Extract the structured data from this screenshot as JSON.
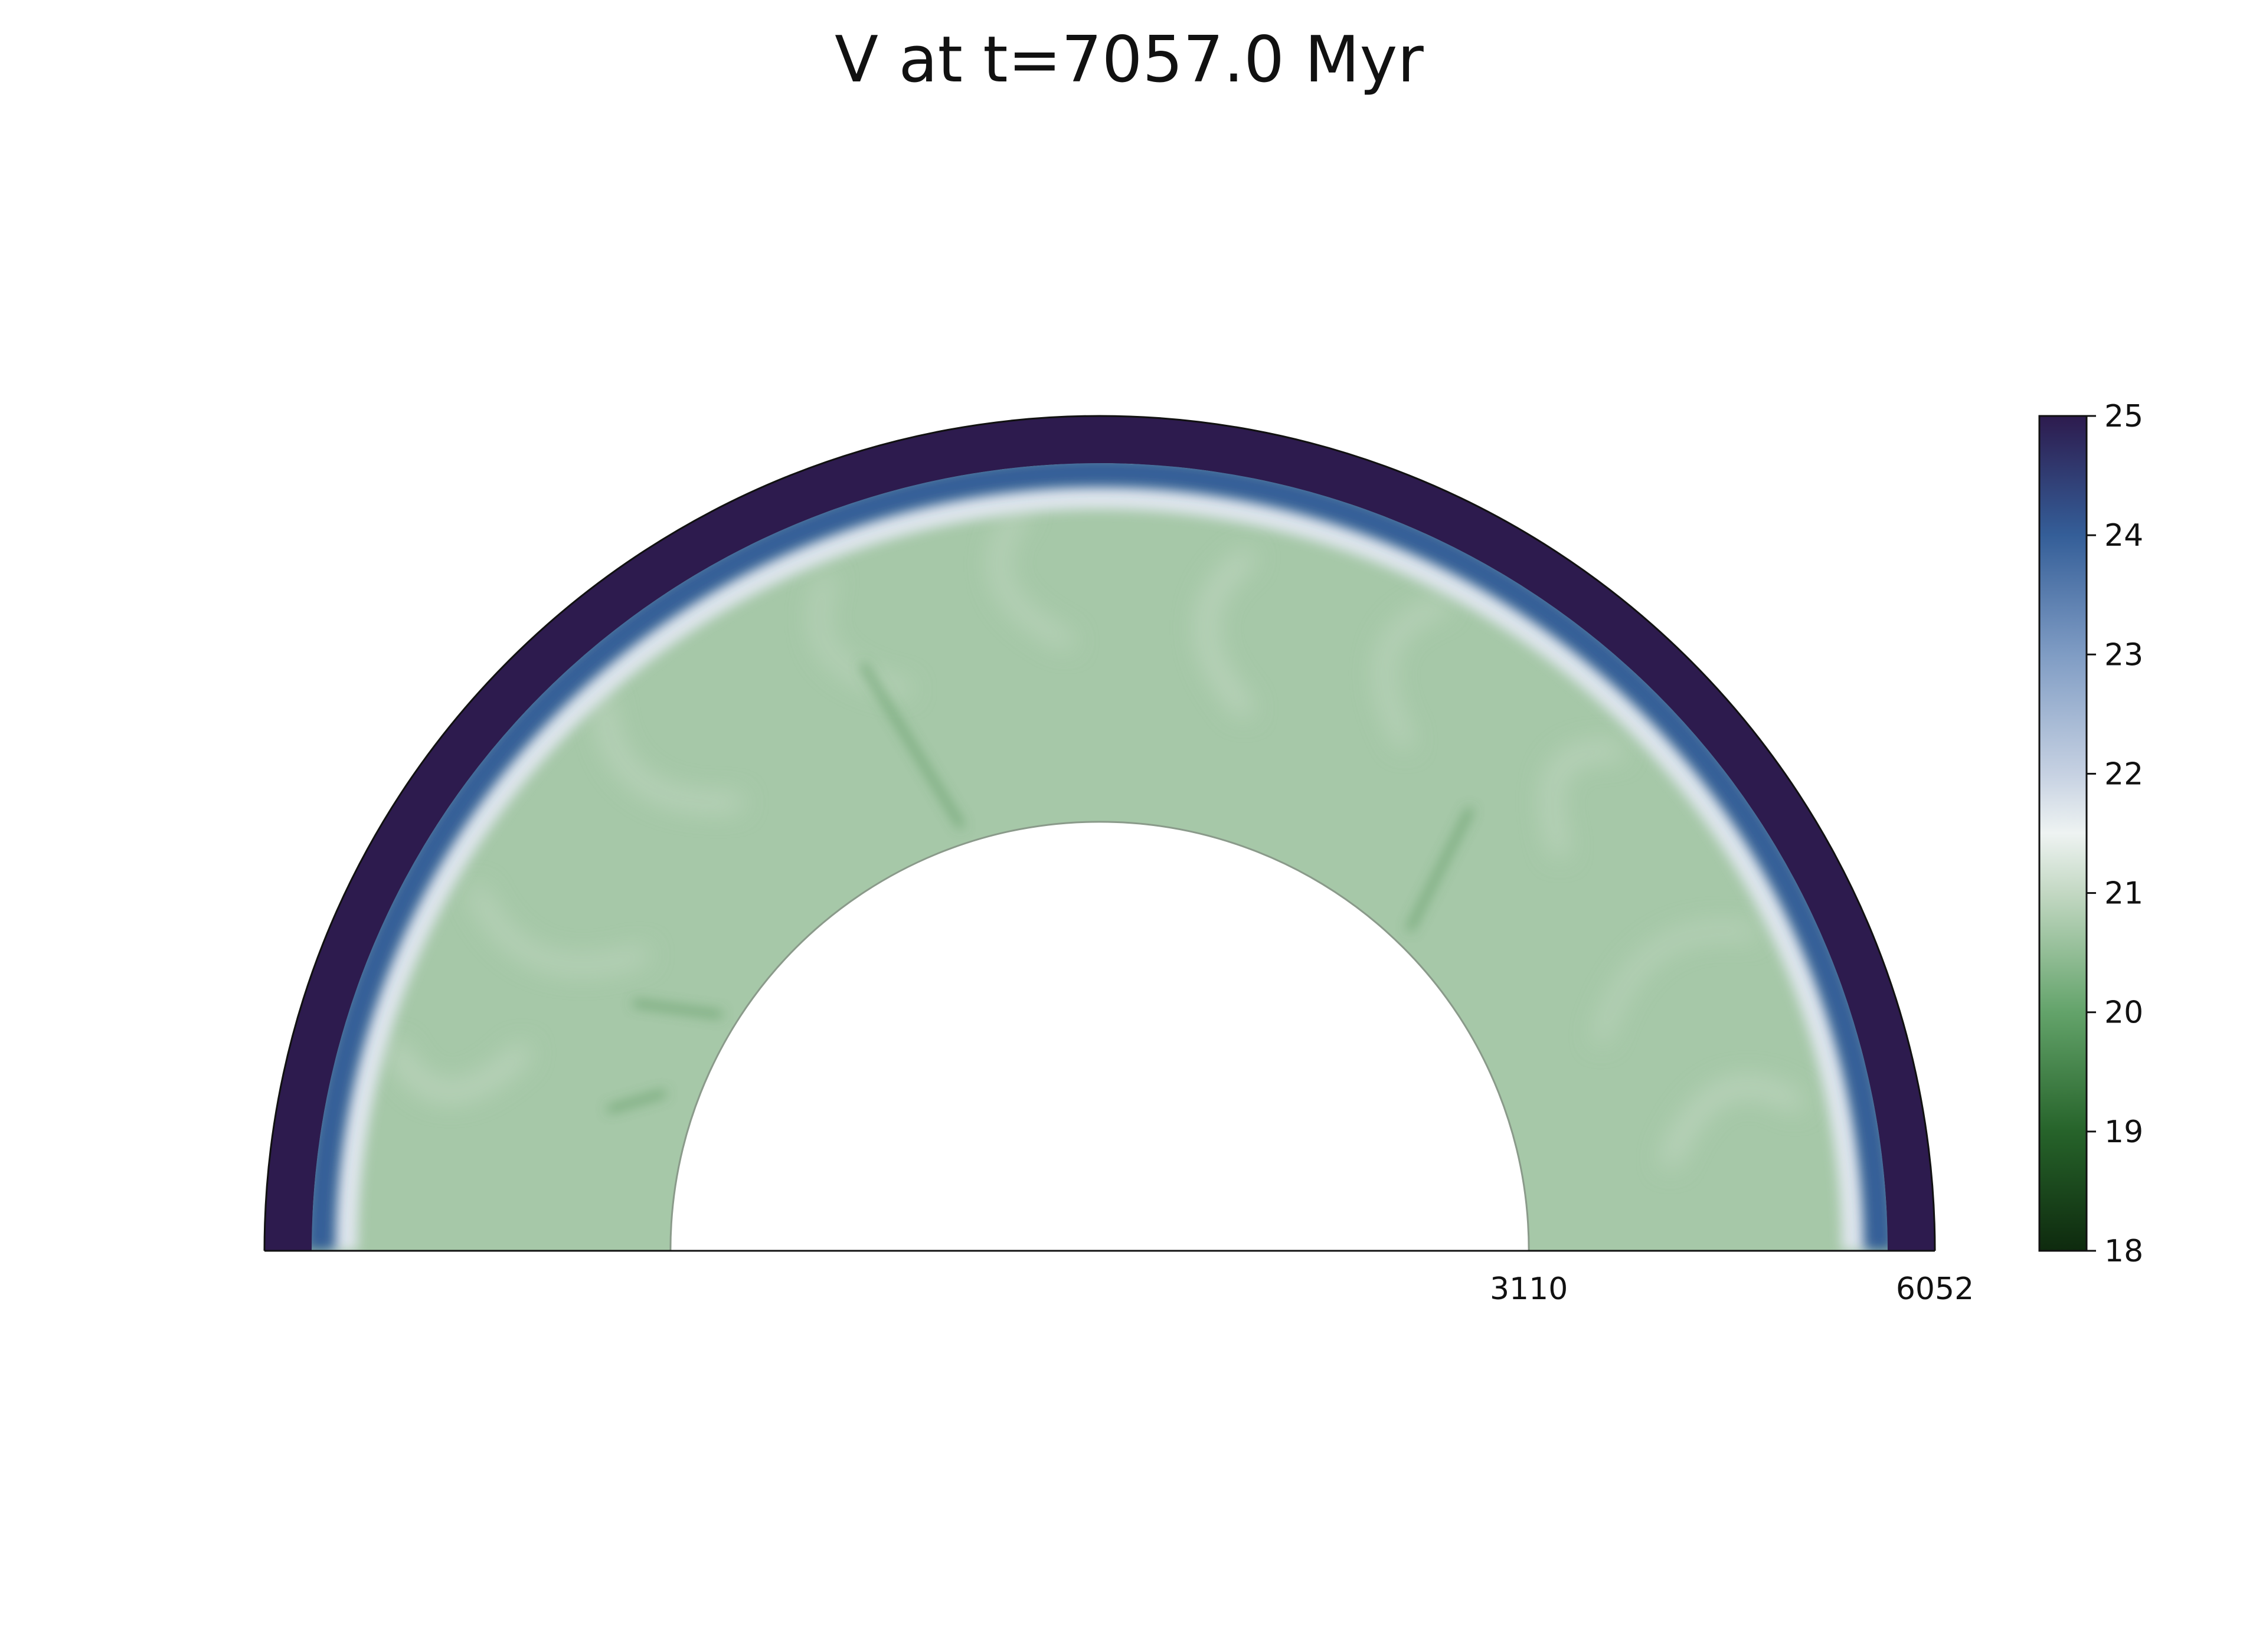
{
  "chart_data": {
    "type": "heatmap",
    "projection": "polar half-annulus",
    "title": "V at t=7057.0 Myr",
    "radial_axis": {
      "inner_radius": 3110,
      "outer_radius": 6052,
      "tick_labels": [
        "3110",
        "6052"
      ]
    },
    "colorbar": {
      "min": 18,
      "max": 25,
      "ticks": [
        18,
        19,
        20,
        21,
        22,
        23,
        24,
        25
      ],
      "tick_labels": [
        "18",
        "19",
        "20",
        "21",
        "22",
        "23",
        "24",
        "25"
      ],
      "colormap_stops": [
        {
          "value": 18,
          "color": "#0e2a0e"
        },
        {
          "value": 19,
          "color": "#26632a"
        },
        {
          "value": 20,
          "color": "#63a36a"
        },
        {
          "value": 21,
          "color": "#c3d8c3"
        },
        {
          "value": 21.5,
          "color": "#eef3f2"
        },
        {
          "value": 22,
          "color": "#c6d1e2"
        },
        {
          "value": 23,
          "color": "#7f9cc4"
        },
        {
          "value": 24,
          "color": "#345e98"
        },
        {
          "value": 25,
          "color": "#2d1b4e"
        }
      ]
    },
    "field": {
      "interior_value": 20.7,
      "boundary_value": 21.7,
      "lid_value": 25,
      "downwelling_value": 19.8
    },
    "legend": "colorbar right"
  }
}
